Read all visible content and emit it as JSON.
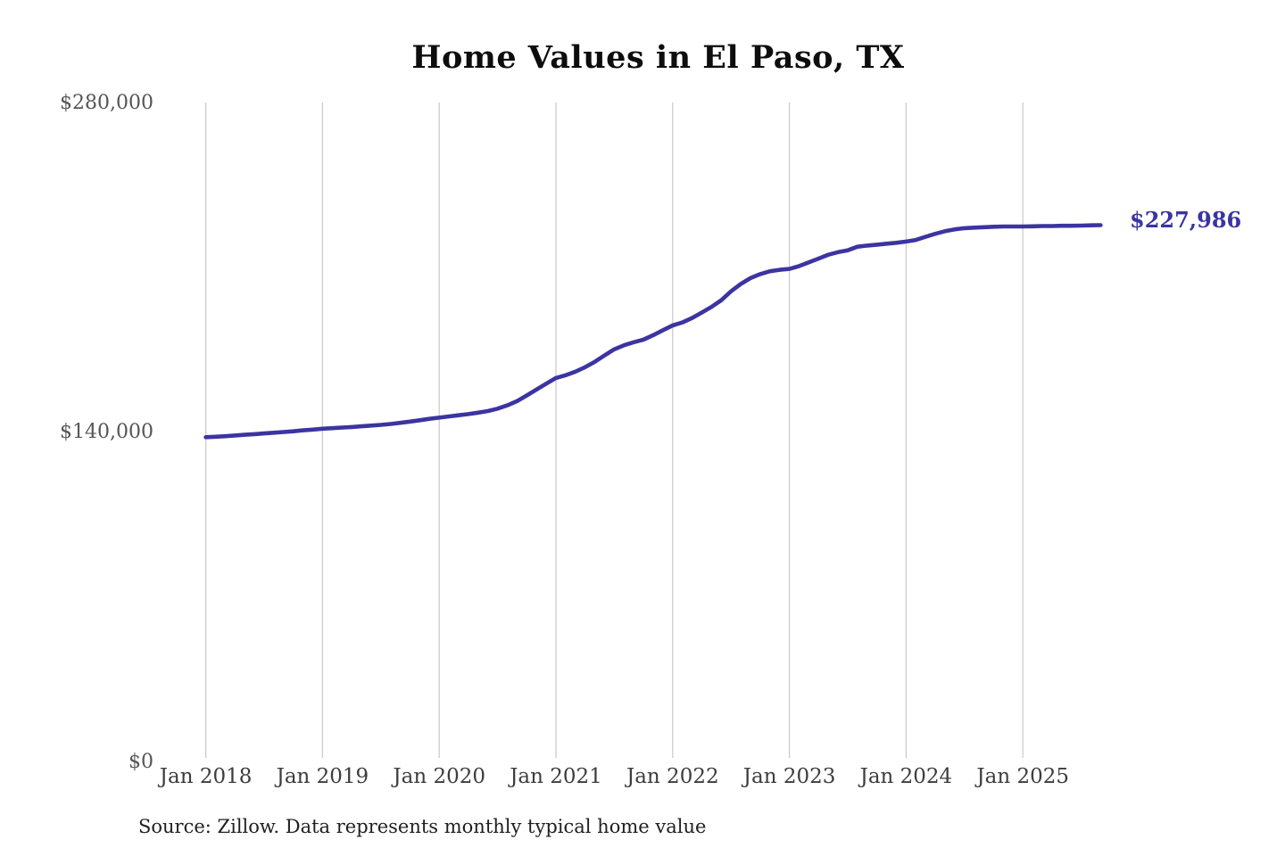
{
  "page": {
    "title": "Home Values in El Paso, TX",
    "source_note": "Source: Zillow. Data represents monthly typical home value",
    "end_label": "$227,986"
  },
  "colors": {
    "line": "#3b34a1",
    "end_label": "#3b34a1",
    "grid": "#cccccc",
    "y_label": "#555555",
    "x_label": "#3d3d3d",
    "title": "#0d0d0d",
    "source": "#1f1f1f",
    "background": "#ffffff"
  },
  "y_axis": {
    "labels": {
      "top": "$280,000",
      "middle": "$140,000",
      "bottom": "$0"
    }
  },
  "chart_data": {
    "type": "line",
    "title": "Home Values in El Paso, TX",
    "series_name": "Monthly typical home value",
    "unit": "USD",
    "frequency": "monthly",
    "x_start": "Jan 2018",
    "x_end": "Sep 2025",
    "x_tick_labels": [
      "Jan 2018",
      "Jan 2019",
      "Jan 2020",
      "Jan 2021",
      "Jan 2022",
      "Jan 2023",
      "Jan 2024",
      "Jan 2025"
    ],
    "y_ticks": [
      0,
      140000,
      280000
    ],
    "ylim": [
      0,
      280000
    ],
    "grid": "vertical-only",
    "legend": "none",
    "final_value": 227986,
    "final_value_label": "$227,986",
    "values": [
      138000,
      138200,
      138400,
      138700,
      139000,
      139300,
      139600,
      139900,
      140200,
      140500,
      140900,
      141200,
      141600,
      141800,
      142100,
      142300,
      142600,
      142900,
      143200,
      143600,
      144100,
      144600,
      145200,
      145800,
      146300,
      146800,
      147300,
      147800,
      148400,
      149100,
      150100,
      151500,
      153300,
      155700,
      158200,
      160700,
      163100,
      164300,
      165800,
      167700,
      170000,
      172700,
      175300,
      177000,
      178300,
      179400,
      181300,
      183400,
      185400,
      186700,
      188600,
      190900,
      193300,
      196100,
      199900,
      203000,
      205500,
      207200,
      208400,
      209000,
      209400,
      210600,
      212200,
      213800,
      215400,
      216500,
      217300,
      218800,
      219300,
      219700,
      220100,
      220500,
      221000,
      221700,
      223000,
      224300,
      225400,
      226200,
      226700,
      226900,
      227100,
      227300,
      227400,
      227400,
      227400,
      227500,
      227600,
      227600,
      227700,
      227700,
      227800,
      227900,
      227986
    ]
  }
}
